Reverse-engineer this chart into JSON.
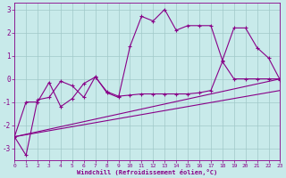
{
  "bg_color": "#c8eaea",
  "grid_color": "#a0c8c8",
  "line_color": "#880088",
  "xlabel": "Windchill (Refroidissement éolien,°C)",
  "xlim": [
    0,
    23
  ],
  "ylim": [
    -3.5,
    3.3
  ],
  "xticks": [
    0,
    1,
    2,
    3,
    4,
    5,
    6,
    7,
    8,
    9,
    10,
    11,
    12,
    13,
    14,
    15,
    16,
    17,
    18,
    19,
    20,
    21,
    22,
    23
  ],
  "yticks": [
    -3,
    -2,
    -1,
    0,
    1,
    2,
    3
  ],
  "line1_x": [
    0,
    1,
    2,
    3,
    4,
    5,
    6,
    7,
    8,
    9,
    10,
    11,
    12,
    13,
    14,
    15,
    16,
    17,
    18,
    19,
    20,
    21,
    22,
    23
  ],
  "line1_y": [
    -2.5,
    -3.3,
    -0.9,
    -0.8,
    -0.1,
    -0.3,
    -0.8,
    0.1,
    -0.6,
    -0.8,
    1.4,
    2.7,
    2.5,
    3.0,
    2.1,
    2.3,
    2.3,
    2.3,
    0.8,
    2.2,
    2.2,
    1.35,
    0.9,
    -0.05
  ],
  "line2_x": [
    0,
    1,
    2,
    3,
    4,
    5,
    6,
    7,
    8,
    9,
    10,
    11,
    12,
    13,
    14,
    15,
    16,
    17,
    18,
    19,
    20,
    21,
    22,
    23
  ],
  "line2_y": [
    -2.5,
    -1.0,
    -1.0,
    -0.15,
    -1.2,
    -0.85,
    -0.2,
    0.08,
    -0.55,
    -0.75,
    -0.7,
    -0.65,
    -0.65,
    -0.65,
    -0.65,
    -0.65,
    -0.6,
    -0.5,
    0.75,
    0.0,
    0.0,
    0.0,
    0.0,
    0.0
  ],
  "line3_x": [
    0,
    23
  ],
  "line3_y": [
    -2.5,
    0.0
  ],
  "line4_x": [
    0,
    23
  ],
  "line4_y": [
    -2.5,
    -0.5
  ]
}
